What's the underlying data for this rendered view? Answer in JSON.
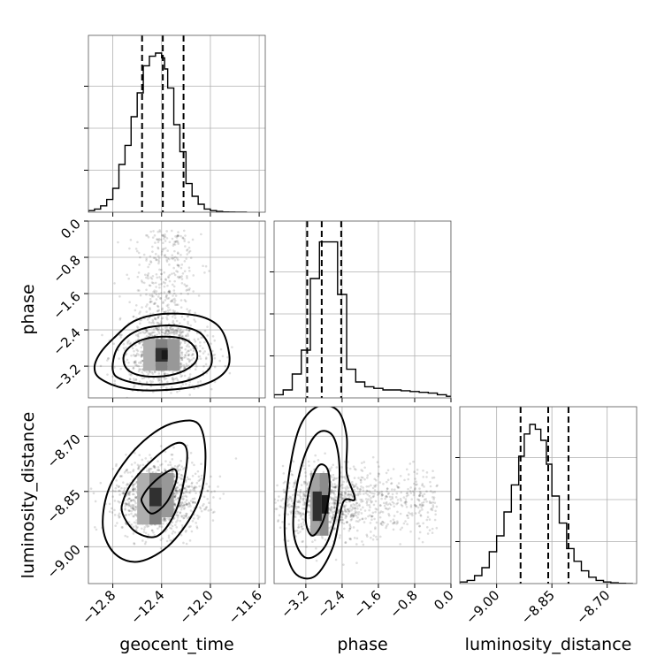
{
  "chart_data": {
    "type": "corner",
    "parameters": [
      "geocent_time",
      "phase",
      "luminosity_distance"
    ],
    "grid": true,
    "axes": {
      "geocent_time": {
        "label": "geocent_time",
        "range": [
          -13.0,
          -11.55
        ],
        "ticks": [
          -12.8,
          -12.4,
          -12.0,
          -11.6
        ],
        "tick_labels": [
          "−12.8",
          "−12.4",
          "−12.0",
          "−11.6"
        ]
      },
      "phase": {
        "label": "phase",
        "range": [
          -3.9,
          0.0
        ],
        "ticks": [
          -3.2,
          -2.4,
          -1.6,
          -0.8,
          0.0
        ],
        "tick_labels": [
          "−3.2",
          "−2.4",
          "−1.6",
          "−0.8",
          "0.0"
        ]
      },
      "luminosity_distance": {
        "label": "luminosity_distance",
        "range": [
          -9.1,
          -8.62
        ],
        "ticks": [
          -9.0,
          -8.85,
          -8.7
        ],
        "tick_labels": [
          "−9.00",
          "−8.85",
          "−8.70"
        ]
      }
    },
    "marginals": [
      {
        "parameter": "geocent_time",
        "bin_edges": [
          -13.0,
          -12.95,
          -12.9,
          -12.85,
          -12.8,
          -12.75,
          -12.7,
          -12.65,
          -12.6,
          -12.55,
          -12.5,
          -12.45,
          -12.4,
          -12.375,
          -12.35,
          -12.3,
          -12.25,
          -12.2,
          -12.15,
          -12.1,
          -12.05,
          -12.0,
          -11.95,
          -11.9,
          -11.85,
          -11.8,
          -11.7
        ],
        "counts": [
          0.01,
          0.02,
          0.04,
          0.08,
          0.15,
          0.3,
          0.42,
          0.6,
          0.75,
          0.92,
          0.98,
          1.0,
          0.97,
          0.9,
          0.78,
          0.55,
          0.38,
          0.18,
          0.1,
          0.05,
          0.02,
          0.01,
          0.005,
          0.002,
          0.001,
          0.0
        ],
        "quantiles": [
          -12.56,
          -12.39,
          -12.22
        ]
      },
      {
        "parameter": "phase",
        "bin_edges": [
          -3.9,
          -3.7,
          -3.5,
          -3.3,
          -3.1,
          -2.9,
          -2.7,
          -2.5,
          -2.3,
          -2.1,
          -1.9,
          -1.7,
          -1.5,
          -1.3,
          -1.1,
          -0.9,
          -0.7,
          -0.5,
          -0.3,
          -0.1,
          0.0
        ],
        "counts": [
          0.02,
          0.05,
          0.15,
          0.3,
          0.75,
          0.98,
          0.98,
          0.65,
          0.18,
          0.1,
          0.07,
          0.06,
          0.05,
          0.05,
          0.045,
          0.04,
          0.035,
          0.03,
          0.02,
          0.01
        ],
        "quantiles": [
          -3.17,
          -2.85,
          -2.42
        ]
      },
      {
        "parameter": "luminosity_distance",
        "bin_edges": [
          -9.1,
          -9.08,
          -9.06,
          -9.04,
          -9.02,
          -9.0,
          -8.98,
          -8.96,
          -8.94,
          -8.925,
          -8.91,
          -8.895,
          -8.88,
          -8.865,
          -8.85,
          -8.83,
          -8.81,
          -8.79,
          -8.77,
          -8.75,
          -8.73,
          -8.71,
          -8.69,
          -8.67,
          -8.65,
          -8.63
        ],
        "counts": [
          0.01,
          0.02,
          0.05,
          0.1,
          0.2,
          0.3,
          0.45,
          0.62,
          0.8,
          0.94,
          1.0,
          0.97,
          0.9,
          0.75,
          0.55,
          0.38,
          0.22,
          0.14,
          0.08,
          0.04,
          0.02,
          0.01,
          0.005,
          0.002,
          0.0
        ],
        "quantiles": [
          -8.935,
          -8.86,
          -8.805
        ]
      }
    ],
    "joint": [
      {
        "x": "geocent_time",
        "y": "phase",
        "peak": [
          -12.38,
          -2.95
        ],
        "contours": [
          {
            "level": 0.39,
            "pts": [
              [
                -12.7,
                -3.2
              ],
              [
                -12.61,
                -3.38
              ],
              [
                -12.43,
                -3.43
              ],
              [
                -12.24,
                -3.33
              ],
              [
                -12.12,
                -3.1
              ],
              [
                -12.12,
                -2.83
              ],
              [
                -12.21,
                -2.61
              ],
              [
                -12.39,
                -2.55
              ],
              [
                -12.58,
                -2.64
              ],
              [
                -12.7,
                -2.9
              ]
            ]
          },
          {
            "level": 0.86,
            "pts": [
              [
                -12.8,
                -3.29
              ],
              [
                -12.72,
                -3.5
              ],
              [
                -12.49,
                -3.61
              ],
              [
                -12.2,
                -3.53
              ],
              [
                -12.01,
                -3.26
              ],
              [
                -12.0,
                -2.84
              ],
              [
                -12.1,
                -2.44
              ],
              [
                -12.34,
                -2.3
              ],
              [
                -12.6,
                -2.42
              ],
              [
                -12.76,
                -2.79
              ]
            ]
          },
          {
            "level": 0.99,
            "pts": [
              [
                -12.95,
                -3.23
              ],
              [
                -12.9,
                -3.48
              ],
              [
                -12.7,
                -3.69
              ],
              [
                -12.4,
                -3.73
              ],
              [
                -12.05,
                -3.6
              ],
              [
                -11.86,
                -3.25
              ],
              [
                -11.86,
                -2.73
              ],
              [
                -11.94,
                -2.3
              ],
              [
                -12.12,
                -2.08
              ],
              [
                -12.4,
                -2.05
              ],
              [
                -12.62,
                -2.2
              ],
              [
                -12.78,
                -2.55
              ],
              [
                -12.9,
                -2.9
              ]
            ]
          }
        ],
        "density_cells": [
          {
            "x0": -12.55,
            "x1": -12.45,
            "y0": -3.3,
            "y1": -2.6,
            "d": 0.35
          },
          {
            "x0": -12.45,
            "x1": -12.35,
            "y0": -3.3,
            "y1": -2.6,
            "d": 0.55
          },
          {
            "x0": -12.35,
            "x1": -12.25,
            "y0": -3.3,
            "y1": -2.6,
            "d": 0.45
          },
          {
            "x0": -12.45,
            "x1": -12.35,
            "y0": -3.1,
            "y1": -2.8,
            "d": 0.9
          },
          {
            "x0": -12.4,
            "x1": -12.35,
            "y0": -3.05,
            "y1": -2.85,
            "d": 1.0
          }
        ]
      },
      {
        "x": "geocent_time",
        "y": "luminosity_distance",
        "peak": [
          -12.42,
          -8.865
        ],
        "contours": [
          {
            "level": 0.39,
            "pts": [
              [
                -12.56,
                -8.88
              ],
              [
                -12.48,
                -8.91
              ],
              [
                -12.36,
                -8.88
              ],
              [
                -12.28,
                -8.82
              ],
              [
                -12.29,
                -8.79
              ],
              [
                -12.37,
                -8.8
              ],
              [
                -12.48,
                -8.83
              ],
              [
                -12.55,
                -8.86
              ]
            ]
          },
          {
            "level": 0.86,
            "pts": [
              [
                -12.72,
                -8.91
              ],
              [
                -12.61,
                -8.96
              ],
              [
                -12.43,
                -8.97
              ],
              [
                -12.28,
                -8.9
              ],
              [
                -12.2,
                -8.79
              ],
              [
                -12.2,
                -8.73
              ],
              [
                -12.29,
                -8.72
              ],
              [
                -12.46,
                -8.76
              ],
              [
                -12.63,
                -8.82
              ],
              [
                -12.71,
                -8.87
              ]
            ]
          },
          {
            "level": 0.99,
            "pts": [
              [
                -12.88,
                -8.95
              ],
              [
                -12.78,
                -9.02
              ],
              [
                -12.58,
                -9.04
              ],
              [
                -12.32,
                -8.99
              ],
              [
                -12.1,
                -8.88
              ],
              [
                -12.04,
                -8.76
              ],
              [
                -12.09,
                -8.67
              ],
              [
                -12.25,
                -8.66
              ],
              [
                -12.46,
                -8.69
              ],
              [
                -12.68,
                -8.76
              ],
              [
                -12.84,
                -8.85
              ]
            ]
          }
        ],
        "density_cells": [
          {
            "x0": -12.6,
            "x1": -12.5,
            "y0": -8.94,
            "y1": -8.8,
            "d": 0.35
          },
          {
            "x0": -12.5,
            "x1": -12.4,
            "y0": -8.94,
            "y1": -8.8,
            "d": 0.55
          },
          {
            "x0": -12.4,
            "x1": -12.3,
            "y0": -8.92,
            "y1": -8.8,
            "d": 0.45
          },
          {
            "x0": -12.5,
            "x1": -12.4,
            "y0": -8.89,
            "y1": -8.84,
            "d": 0.9
          }
        ]
      },
      {
        "x": "phase",
        "y": "luminosity_distance",
        "peak": [
          -2.85,
          -8.88
        ],
        "contours": [
          {
            "level": 0.39,
            "pts": [
              [
                -3.2,
                -8.93
              ],
              [
                -3.05,
                -8.97
              ],
              [
                -2.82,
                -8.93
              ],
              [
                -2.68,
                -8.85
              ],
              [
                -2.72,
                -8.79
              ],
              [
                -2.92,
                -8.78
              ],
              [
                -3.12,
                -8.84
              ]
            ]
          },
          {
            "level": 0.86,
            "pts": [
              [
                -3.46,
                -8.97
              ],
              [
                -3.2,
                -9.03
              ],
              [
                -2.78,
                -9.0
              ],
              [
                -2.52,
                -8.9
              ],
              [
                -2.46,
                -8.78
              ],
              [
                -2.6,
                -8.7
              ],
              [
                -2.92,
                -8.69
              ],
              [
                -3.22,
                -8.75
              ],
              [
                -3.43,
                -8.86
              ]
            ]
          },
          {
            "level": 0.99,
            "pts": [
              [
                -3.66,
                -8.98
              ],
              [
                -3.45,
                -9.07
              ],
              [
                -3.0,
                -9.08
              ],
              [
                -2.6,
                -9.0
              ],
              [
                -2.38,
                -8.88
              ],
              [
                -2.12,
                -8.87
              ],
              [
                -2.3,
                -8.8
              ],
              [
                -2.3,
                -8.7
              ],
              [
                -2.5,
                -8.63
              ],
              [
                -2.95,
                -8.62
              ],
              [
                -3.35,
                -8.68
              ],
              [
                -3.6,
                -8.83
              ]
            ]
          }
        ],
        "density_cells": [
          {
            "x0": -3.1,
            "x1": -2.9,
            "y0": -8.97,
            "y1": -8.8,
            "d": 0.4
          },
          {
            "x0": -2.9,
            "x1": -2.7,
            "y0": -8.97,
            "y1": -8.8,
            "d": 0.5
          },
          {
            "x0": -3.05,
            "x1": -2.85,
            "y0": -8.93,
            "y1": -8.85,
            "d": 0.9
          },
          {
            "x0": -2.85,
            "x1": -2.7,
            "y0": -8.91,
            "y1": -8.86,
            "d": 1.0
          }
        ]
      }
    ]
  }
}
